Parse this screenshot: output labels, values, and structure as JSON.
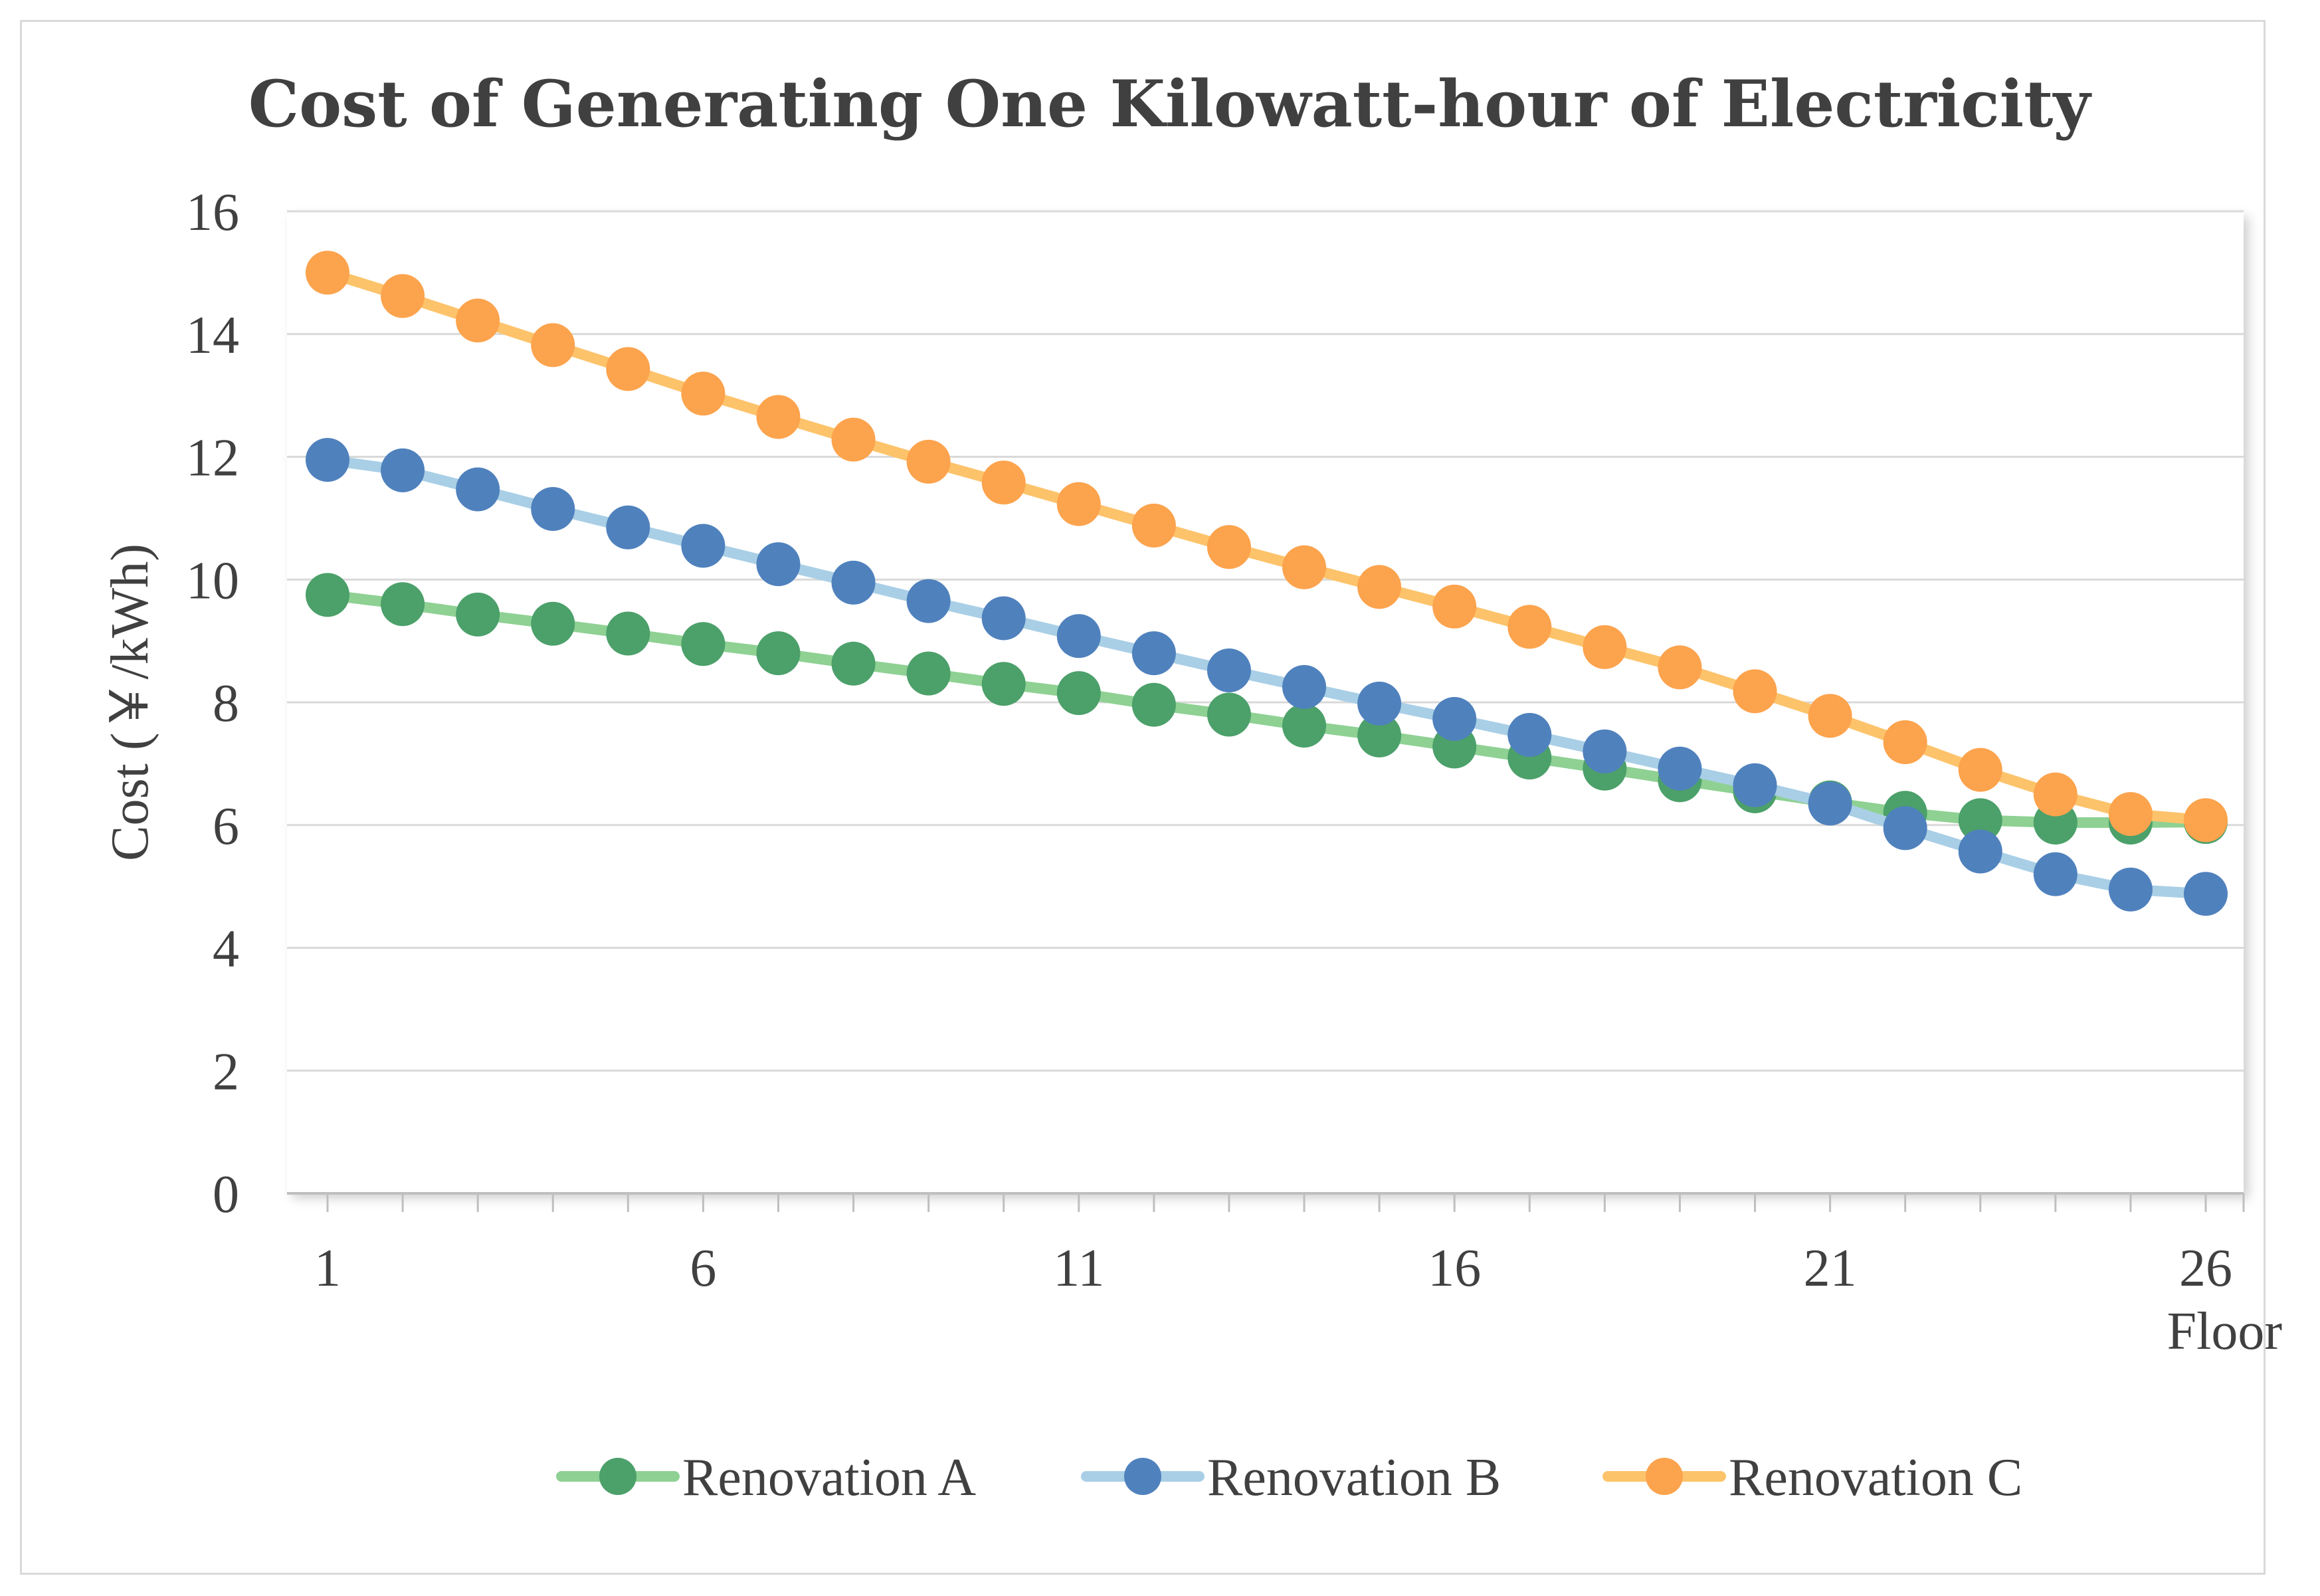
{
  "chart_data": {
    "type": "line",
    "title": "Cost of Generating One Kilowatt-hour of Electricity",
    "xlabel": "Floor",
    "ylabel": "Cost (￥/kWh)",
    "ylim": [
      0,
      16
    ],
    "yticks": [
      "0",
      "2",
      "4",
      "6",
      "8",
      "10",
      "12",
      "14",
      "16"
    ],
    "xticks": [
      "1",
      "6",
      "11",
      "16",
      "21",
      "26"
    ],
    "x": [
      1,
      2,
      3,
      4,
      5,
      6,
      7,
      8,
      9,
      10,
      11,
      12,
      13,
      14,
      15,
      16,
      17,
      18,
      19,
      20,
      21,
      22,
      23,
      24,
      25,
      26
    ],
    "legend_position": "bottom",
    "series": [
      {
        "name": "Renovation A",
        "line_color": "#8ed193",
        "marker_color": "#4ca06a",
        "values": [
          9.75,
          9.6,
          9.43,
          9.28,
          9.12,
          8.95,
          8.8,
          8.63,
          8.47,
          8.3,
          8.15,
          7.96,
          7.8,
          7.62,
          7.46,
          7.28,
          7.1,
          6.92,
          6.73,
          6.55,
          6.37,
          6.2,
          6.08,
          6.04,
          6.04,
          6.05
        ]
      },
      {
        "name": "Renovation B",
        "line_color": "#a9cfe6",
        "marker_color": "#4f81bd",
        "values": [
          11.95,
          11.78,
          11.47,
          11.15,
          10.85,
          10.55,
          10.25,
          9.95,
          9.65,
          9.37,
          9.08,
          8.8,
          8.52,
          8.25,
          7.98,
          7.73,
          7.47,
          7.2,
          6.92,
          6.65,
          6.35,
          5.95,
          5.57,
          5.2,
          4.95,
          4.88
        ]
      },
      {
        "name": "Renovation C",
        "line_color": "#fdc36a",
        "marker_color": "#fca34d",
        "values": [
          15.0,
          14.62,
          14.22,
          13.82,
          13.43,
          13.03,
          12.65,
          12.28,
          11.92,
          11.58,
          11.23,
          10.88,
          10.53,
          10.2,
          9.88,
          9.56,
          9.23,
          8.9,
          8.57,
          8.18,
          7.78,
          7.35,
          6.9,
          6.5,
          6.18,
          6.08
        ]
      }
    ]
  }
}
